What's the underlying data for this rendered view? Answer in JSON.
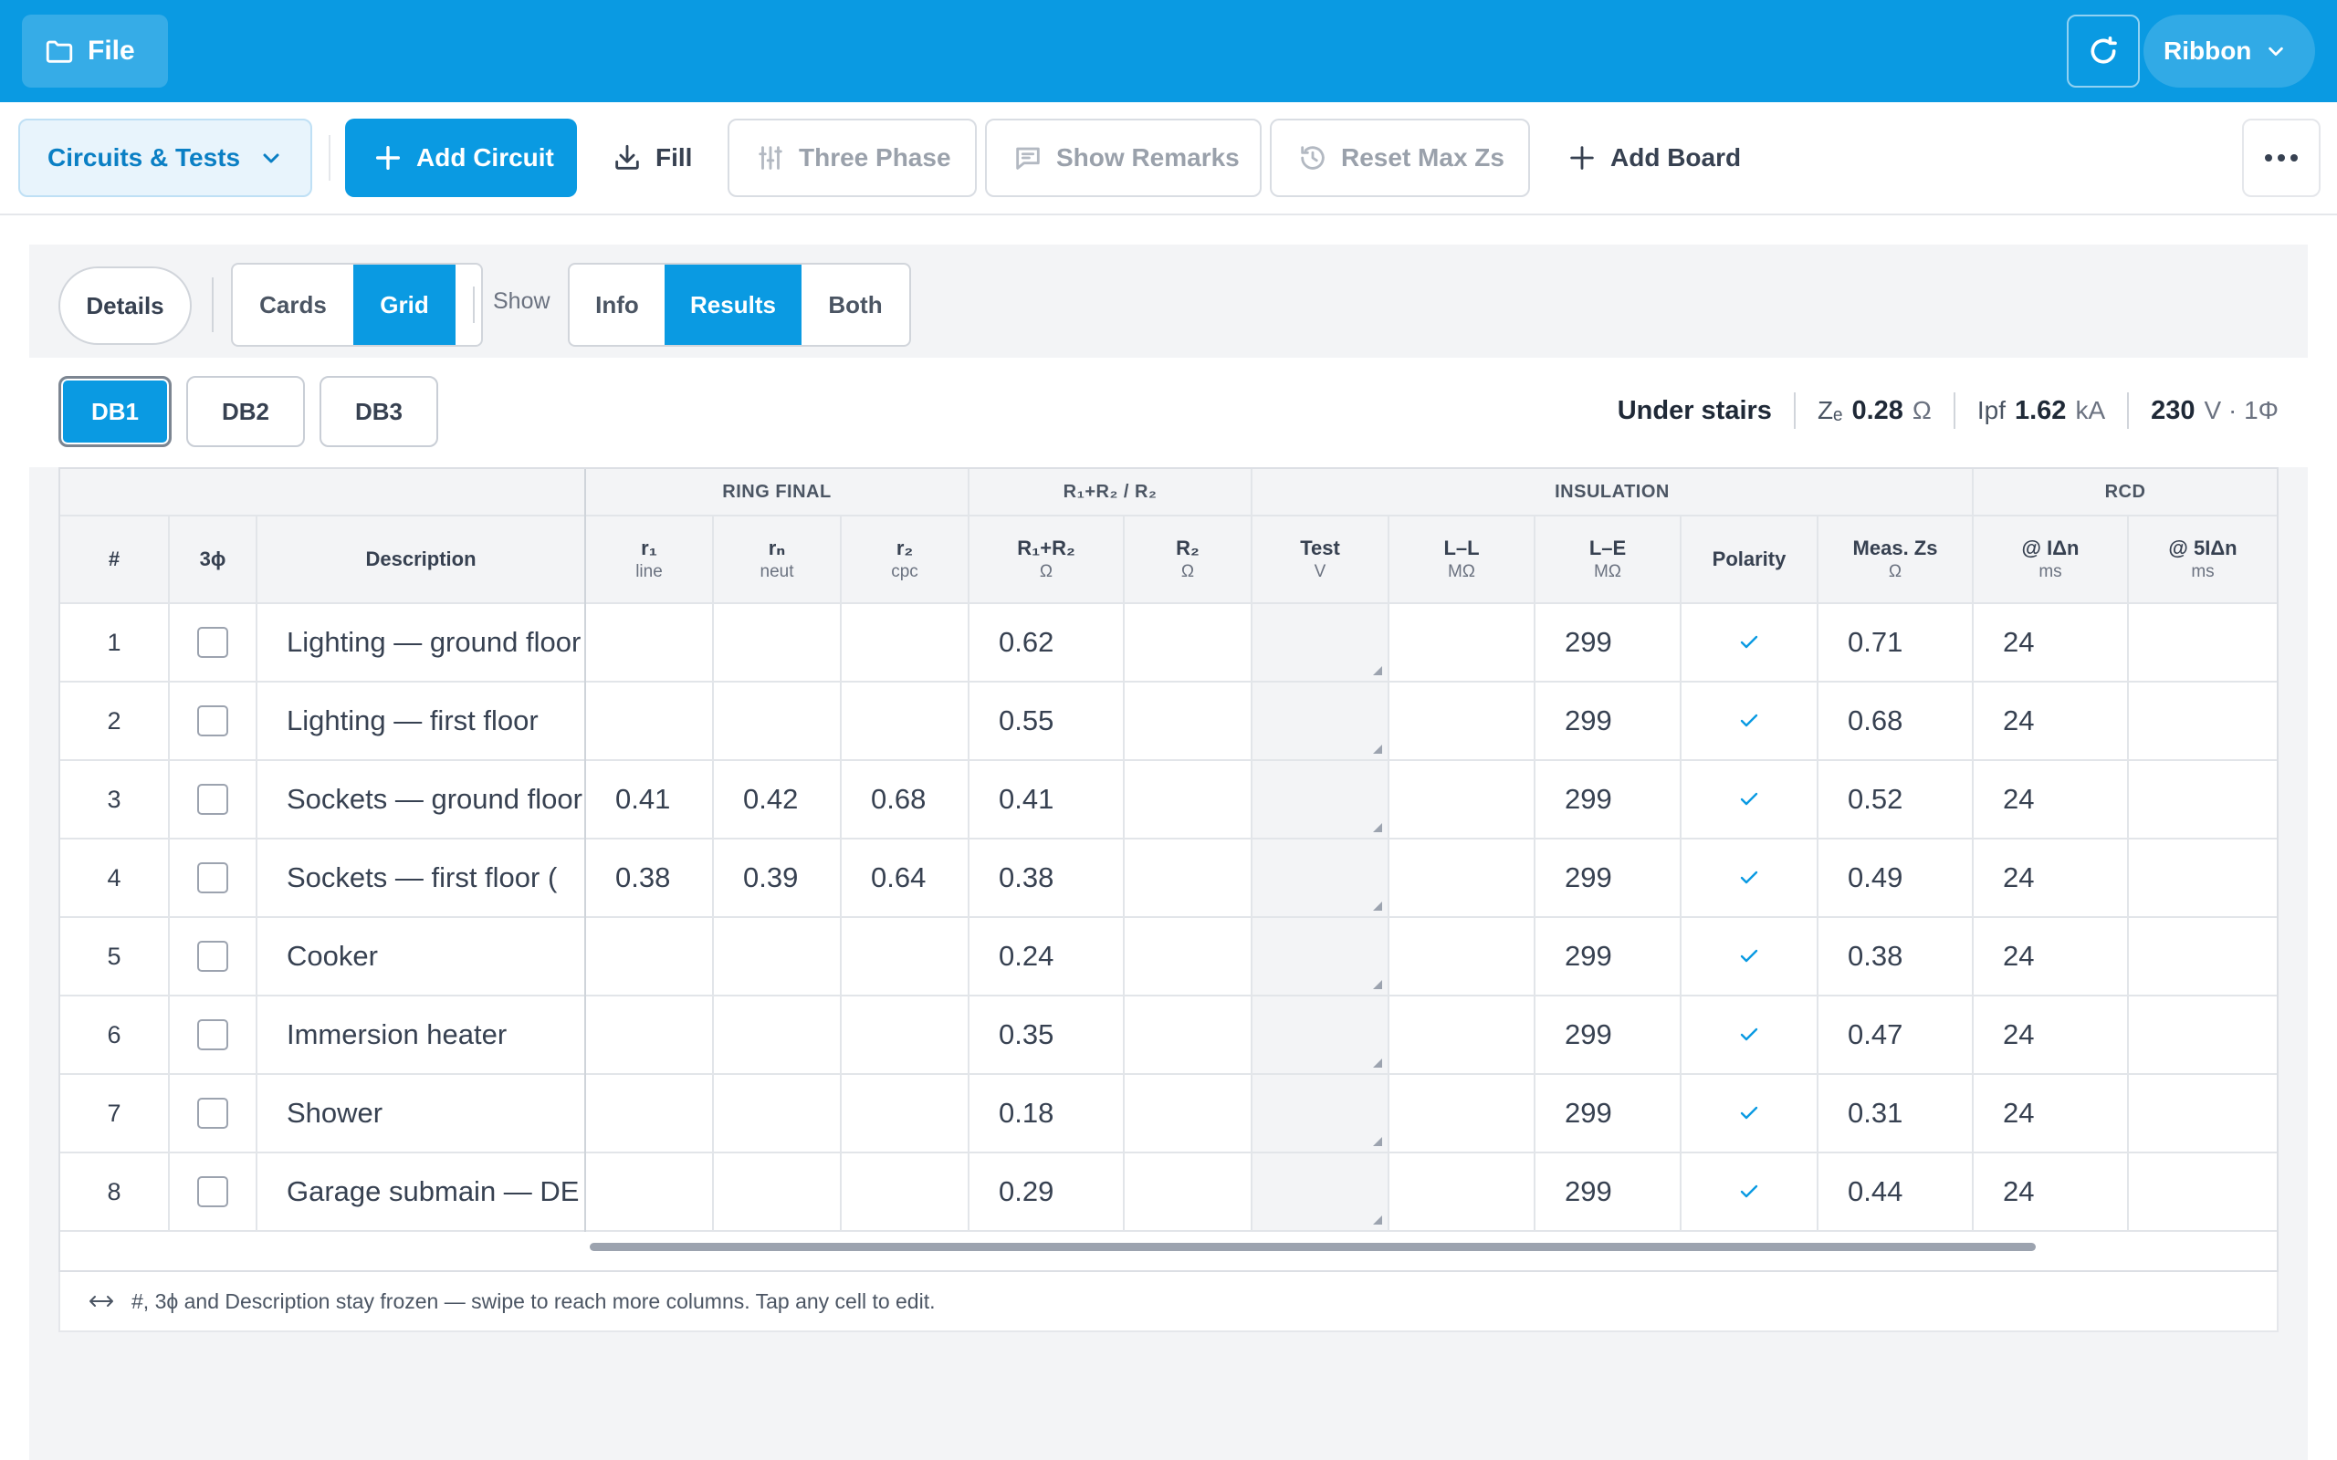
{
  "topbar": {
    "file_label": "File",
    "ribbon_label": "Ribbon"
  },
  "toolbar": {
    "circuits_label": "Circuits & Tests",
    "add_circuit_label": "Add Circuit",
    "fill_label": "Fill",
    "three_phase_label": "Three Phase",
    "show_remarks_label": "Show Remarks",
    "reset_max_zs_label": "Reset Max Zs",
    "add_board_label": "Add Board"
  },
  "controls": {
    "details_label": "Details",
    "view_options": [
      "Cards",
      "Grid"
    ],
    "view_selected": "Grid",
    "show_label": "Show",
    "show_options": [
      "Info",
      "Results",
      "Both"
    ],
    "show_selected": "Results"
  },
  "boards": {
    "tabs": [
      "DB1",
      "DB2",
      "DB3"
    ],
    "selected": "DB1",
    "location": "Under stairs",
    "ze_label": "Zₑ",
    "ze_value": "0.28",
    "ze_unit": "Ω",
    "ipf_label": "Ipf",
    "ipf_value": "1.62",
    "ipf_unit": "kA",
    "voltage_value": "230",
    "voltage_unit": "V · 1Φ"
  },
  "grid": {
    "groups": [
      "RING FINAL",
      "R₁+R₂ / R₂",
      "INSULATION",
      "RCD"
    ],
    "headers": [
      {
        "label": "#",
        "sub": ""
      },
      {
        "label": "3ϕ",
        "sub": ""
      },
      {
        "label": "Description",
        "sub": ""
      },
      {
        "label": "r₁",
        "sub": "line"
      },
      {
        "label": "rₙ",
        "sub": "neut"
      },
      {
        "label": "r₂",
        "sub": "cpc"
      },
      {
        "label": "R₁+R₂",
        "sub": "Ω"
      },
      {
        "label": "R₂",
        "sub": "Ω"
      },
      {
        "label": "Test",
        "sub": "V"
      },
      {
        "label": "L–L",
        "sub": "MΩ"
      },
      {
        "label": "L–E",
        "sub": "MΩ"
      },
      {
        "label": "Polarity",
        "sub": ""
      },
      {
        "label": "Meas. Zs",
        "sub": "Ω"
      },
      {
        "label": "@ IΔn",
        "sub": "ms"
      },
      {
        "label": "@ 5IΔn",
        "sub": "ms"
      }
    ],
    "rows": [
      {
        "num": "1",
        "desc": "Lighting — ground floor",
        "r1": "",
        "rn": "",
        "r2": "",
        "r1r2": "0.62",
        "R2": "",
        "test": "",
        "ll": "",
        "le": "299",
        "polarity": true,
        "zs": "0.71",
        "idn": "24",
        "idn5": ""
      },
      {
        "num": "2",
        "desc": "Lighting — first floor",
        "r1": "",
        "rn": "",
        "r2": "",
        "r1r2": "0.55",
        "R2": "",
        "test": "",
        "ll": "",
        "le": "299",
        "polarity": true,
        "zs": "0.68",
        "idn": "24",
        "idn5": ""
      },
      {
        "num": "3",
        "desc": "Sockets — ground floor",
        "r1": "0.41",
        "rn": "0.42",
        "r2": "0.68",
        "r1r2": "0.41",
        "R2": "",
        "test": "",
        "ll": "",
        "le": "299",
        "polarity": true,
        "zs": "0.52",
        "idn": "24",
        "idn5": ""
      },
      {
        "num": "4",
        "desc": "Sockets — first floor (",
        "r1": "0.38",
        "rn": "0.39",
        "r2": "0.64",
        "r1r2": "0.38",
        "R2": "",
        "test": "",
        "ll": "",
        "le": "299",
        "polarity": true,
        "zs": "0.49",
        "idn": "24",
        "idn5": ""
      },
      {
        "num": "5",
        "desc": "Cooker",
        "r1": "",
        "rn": "",
        "r2": "",
        "r1r2": "0.24",
        "R2": "",
        "test": "",
        "ll": "",
        "le": "299",
        "polarity": true,
        "zs": "0.38",
        "idn": "24",
        "idn5": ""
      },
      {
        "num": "6",
        "desc": "Immersion heater",
        "r1": "",
        "rn": "",
        "r2": "",
        "r1r2": "0.35",
        "R2": "",
        "test": "",
        "ll": "",
        "le": "299",
        "polarity": true,
        "zs": "0.47",
        "idn": "24",
        "idn5": ""
      },
      {
        "num": "7",
        "desc": "Shower",
        "r1": "",
        "rn": "",
        "r2": "",
        "r1r2": "0.18",
        "R2": "",
        "test": "",
        "ll": "",
        "le": "299",
        "polarity": true,
        "zs": "0.31",
        "idn": "24",
        "idn5": ""
      },
      {
        "num": "8",
        "desc": "Garage submain — DE",
        "r1": "",
        "rn": "",
        "r2": "",
        "r1r2": "0.29",
        "R2": "",
        "test": "",
        "ll": "",
        "le": "299",
        "polarity": true,
        "zs": "0.44",
        "idn": "24",
        "idn5": ""
      }
    ]
  },
  "hint": "#, 3ϕ and Description stay frozen — swipe to reach more columns. Tap any cell to edit.",
  "colors": {
    "accent": "#0a9ae2",
    "panel": "#f3f4f6"
  },
  "icons": {
    "file": "folder-icon",
    "sync": "sync-icon",
    "ribbon": "chevron-down-icon",
    "add": "plus-icon",
    "fill": "download-icon",
    "three_phase": "sliders-icon",
    "remarks": "message-icon",
    "reset": "history-icon",
    "more": "more-horizontal-icon",
    "polarity": "check-icon",
    "hint": "horizontal-arrows-icon"
  }
}
